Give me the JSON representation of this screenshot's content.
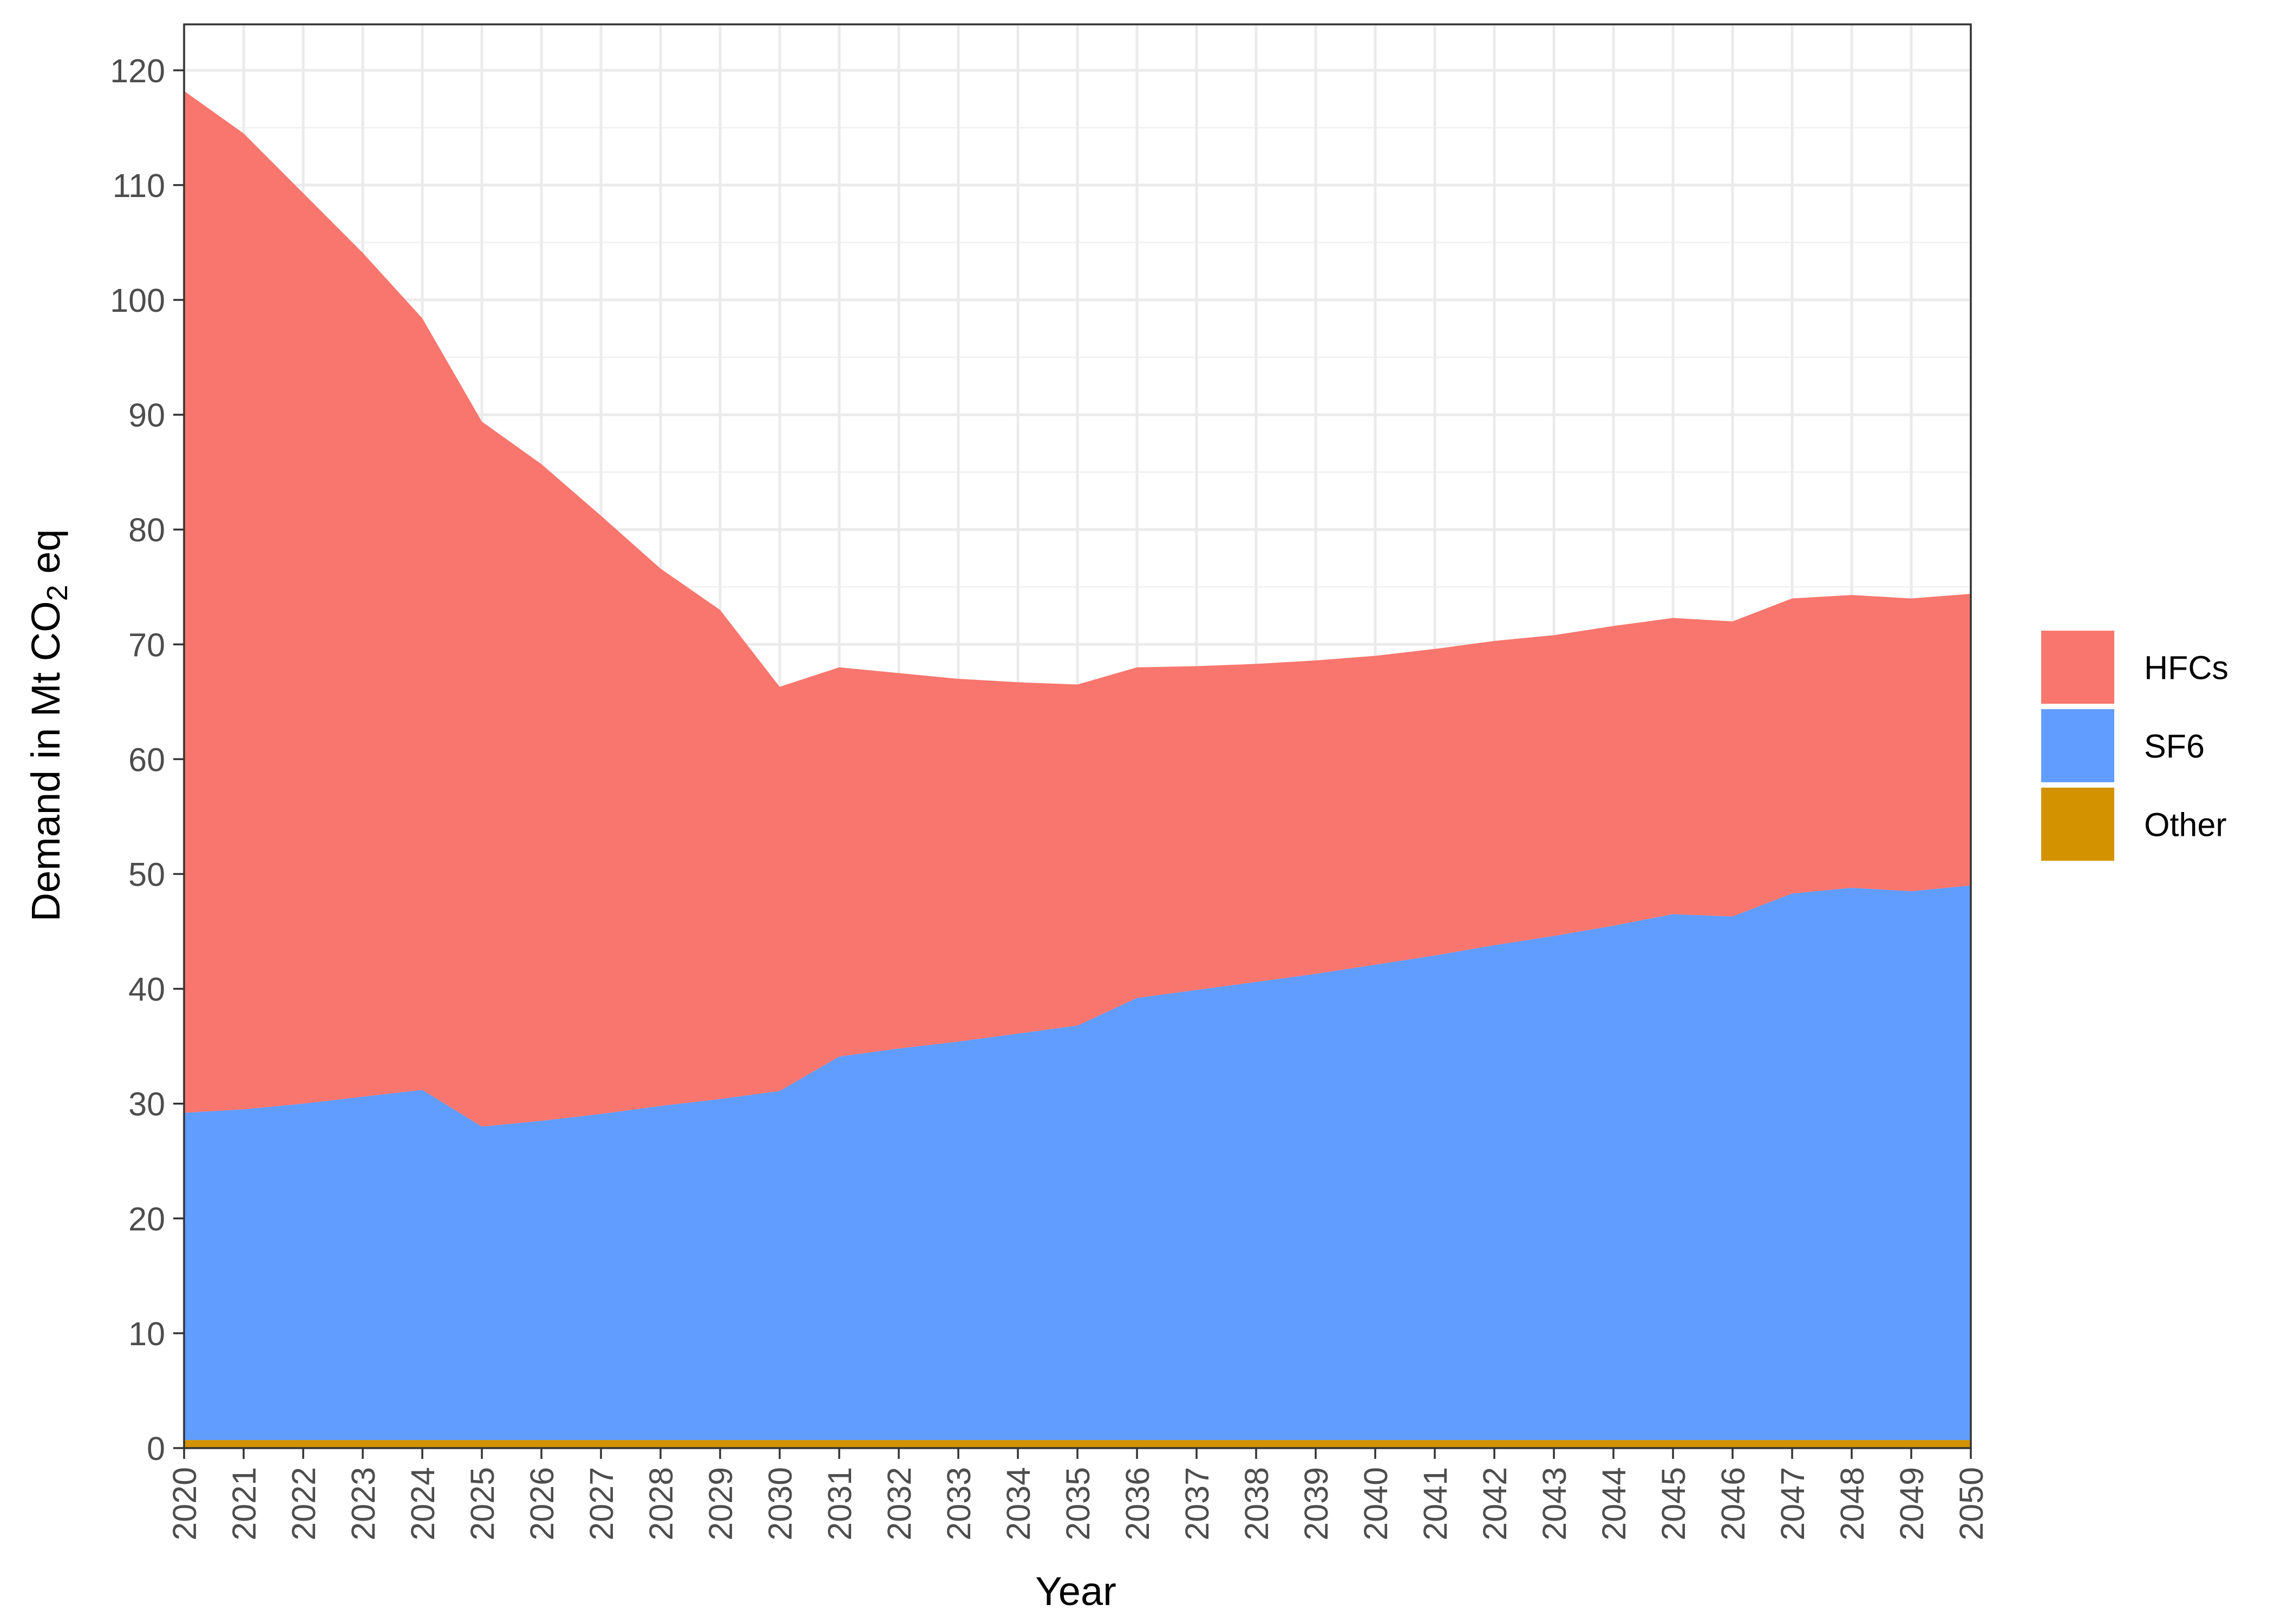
{
  "chart_data": {
    "type": "area",
    "stacked": true,
    "x": [
      2020,
      2021,
      2022,
      2023,
      2024,
      2025,
      2026,
      2027,
      2028,
      2029,
      2030,
      2031,
      2032,
      2033,
      2034,
      2035,
      2036,
      2037,
      2038,
      2039,
      2040,
      2041,
      2042,
      2043,
      2044,
      2045,
      2046,
      2047,
      2048,
      2049,
      2050
    ],
    "xlabel": "Year",
    "ylabel": {
      "main": "Demand in Mt CO",
      "subscript": "2",
      "suffix": " eq"
    },
    "ylim": [
      0,
      124
    ],
    "yticks": [
      0,
      10,
      20,
      30,
      40,
      50,
      60,
      70,
      80,
      90,
      100,
      110,
      120
    ],
    "grid": true,
    "legend_position": "right",
    "series": [
      {
        "name": "Other",
        "color": "#D39200",
        "values": [
          0.7,
          0.7,
          0.7,
          0.7,
          0.7,
          0.7,
          0.7,
          0.7,
          0.7,
          0.7,
          0.7,
          0.7,
          0.7,
          0.7,
          0.7,
          0.7,
          0.7,
          0.7,
          0.7,
          0.7,
          0.7,
          0.7,
          0.7,
          0.7,
          0.7,
          0.7,
          0.7,
          0.7,
          0.7,
          0.7,
          0.7
        ]
      },
      {
        "name": "SF6",
        "color": "#619CFF",
        "values": [
          28.5,
          28.8,
          29.3,
          29.9,
          30.5,
          27.3,
          27.8,
          28.4,
          29.1,
          29.7,
          30.4,
          33.4,
          34.1,
          34.7,
          35.4,
          36.1,
          38.5,
          39.2,
          39.9,
          40.6,
          41.4,
          42.2,
          43.1,
          43.9,
          44.8,
          45.8,
          45.6,
          47.6,
          48.1,
          47.8,
          48.3
        ]
      },
      {
        "name": "HFCs",
        "color": "#F8766D",
        "values": [
          89.0,
          85.0,
          79.3,
          73.5,
          67.2,
          61.4,
          57.2,
          52.1,
          46.8,
          42.6,
          35.2,
          33.9,
          32.7,
          31.6,
          30.6,
          29.7,
          28.8,
          28.2,
          27.7,
          27.3,
          26.9,
          26.7,
          26.5,
          26.2,
          26.1,
          25.8,
          25.7,
          25.7,
          25.5,
          25.5,
          25.4
        ]
      }
    ],
    "legend_order": [
      "HFCs",
      "SF6",
      "Other"
    ]
  }
}
